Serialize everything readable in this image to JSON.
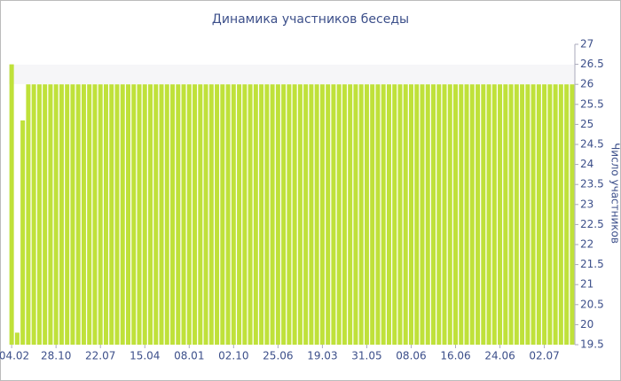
{
  "chart_data": {
    "type": "bar",
    "title": "Динамика участников беседы",
    "y_label": "Число участников",
    "color": "#bfe13a",
    "categories": [
      "04.02",
      null,
      null,
      null,
      null,
      null,
      null,
      null,
      "28.10",
      null,
      null,
      null,
      null,
      null,
      null,
      null,
      "22.07",
      null,
      null,
      null,
      null,
      null,
      null,
      null,
      "15.04",
      null,
      null,
      null,
      null,
      null,
      null,
      null,
      "08.01",
      null,
      null,
      null,
      null,
      null,
      null,
      null,
      "02.10",
      null,
      null,
      null,
      null,
      null,
      null,
      null,
      "25.06",
      null,
      null,
      null,
      null,
      null,
      null,
      null,
      "19.03",
      null,
      null,
      null,
      null,
      null,
      null,
      null,
      "31.05",
      null,
      null,
      null,
      null,
      null,
      null,
      null,
      "08.06",
      null,
      null,
      null,
      null,
      null,
      null,
      null,
      "16.06",
      null,
      null,
      null,
      null,
      null,
      null,
      null,
      "24.06",
      null,
      null,
      null,
      null,
      null,
      null,
      null,
      "02.07",
      null,
      null,
      null,
      null,
      null
    ],
    "values": [
      26.5,
      19.8,
      25.1,
      26,
      26,
      26,
      26,
      26,
      26,
      26,
      26,
      26,
      26,
      26,
      26,
      26,
      26,
      26,
      26,
      26,
      26,
      26,
      26,
      26,
      26,
      26,
      26,
      26,
      26,
      26,
      26,
      26,
      26,
      26,
      26,
      26,
      26,
      26,
      26,
      26,
      26,
      26,
      26,
      26,
      26,
      26,
      26,
      26,
      26,
      26,
      26,
      26,
      26,
      26,
      26,
      26,
      26,
      26,
      26,
      26,
      26,
      26,
      26,
      26,
      26,
      26,
      26,
      26,
      26,
      26,
      26,
      26,
      26,
      26,
      26,
      26,
      26,
      26,
      26,
      26,
      26,
      26,
      26,
      26,
      26,
      26,
      26,
      26,
      26,
      26,
      26,
      26,
      26,
      26,
      26,
      26,
      26,
      26,
      26,
      26,
      26,
      26
    ],
    "ylim": [
      19.5,
      27
    ],
    "yticks": [
      19.5,
      20,
      20.5,
      21,
      21.5,
      22,
      22.5,
      23,
      23.5,
      24,
      24.5,
      25,
      25.5,
      26,
      26.5,
      27
    ]
  }
}
